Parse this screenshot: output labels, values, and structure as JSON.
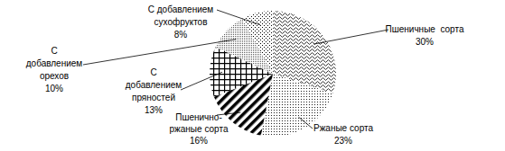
{
  "chart_data": {
    "type": "pie",
    "categories": [
      "Пшеничные  сорта",
      "Ржаные сорта",
      "Пшенично-ржаные сорта",
      "С добавлением пряностей",
      "С добавлением орехов",
      "С добавлением сухофруктов"
    ],
    "values": [
      30,
      23,
      16,
      13,
      10,
      8
    ],
    "value_labels": [
      "30%",
      "23%",
      "16%",
      "13%",
      "10%",
      "8%"
    ],
    "data_labels": true
  }
}
